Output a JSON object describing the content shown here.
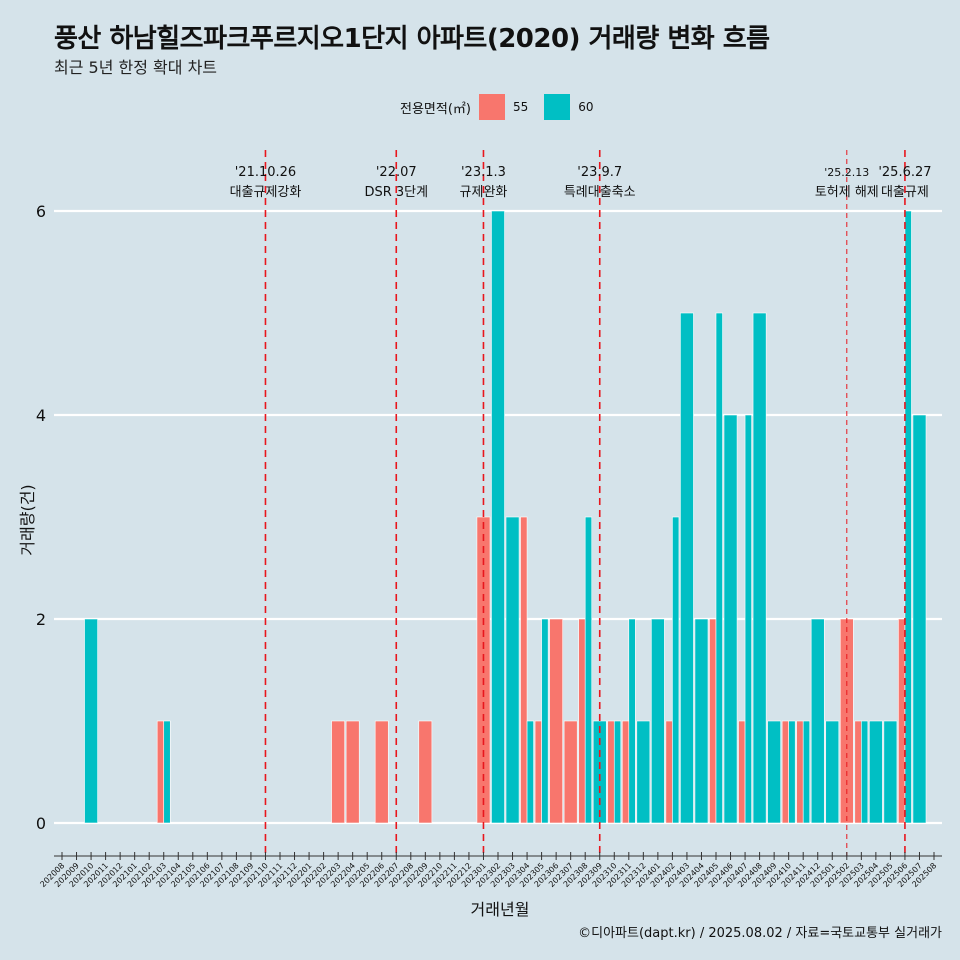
{
  "title": "풍산 하남힐즈파크푸르지오1단지 아파트(2020) 거래량 변화 흐름",
  "subtitle": "최근 5년 한정 확대 차트",
  "caption": "©디아파트(dapt.kr) / 2025.08.02 / 자료=국토교통부 실거래가",
  "legend": {
    "title": "전용면적(㎡)",
    "items": [
      {
        "label": "55",
        "color": "#f8766d"
      },
      {
        "label": "60",
        "color": "#00bfc4"
      }
    ]
  },
  "chart_data": {
    "type": "bar",
    "xlabel": "거래년월",
    "ylabel": "거래량(건)",
    "ylim": [
      0,
      6.3
    ],
    "yticks": [
      0,
      2,
      4,
      6
    ],
    "categories": [
      "202008",
      "202009",
      "202010",
      "202011",
      "202012",
      "202101",
      "202102",
      "202103",
      "202104",
      "202105",
      "202106",
      "202107",
      "202108",
      "202109",
      "202110",
      "202111",
      "202112",
      "202201",
      "202202",
      "202203",
      "202204",
      "202205",
      "202206",
      "202207",
      "202208",
      "202209",
      "202210",
      "202211",
      "202212",
      "202301",
      "202302",
      "202303",
      "202304",
      "202305",
      "202306",
      "202307",
      "202308",
      "202309",
      "202310",
      "202311",
      "202312",
      "202401",
      "202402",
      "202403",
      "202404",
      "202405",
      "202406",
      "202407",
      "202408",
      "202409",
      "202410",
      "202411",
      "202412",
      "202501",
      "202502",
      "202503",
      "202504",
      "202505",
      "202506",
      "202507",
      "202508"
    ],
    "series": [
      {
        "name": "55",
        "color": "#f8766d",
        "values": [
          0,
          0,
          0,
          0,
          0,
          0,
          0,
          1,
          0,
          0,
          0,
          0,
          0,
          0,
          0,
          0,
          0,
          0,
          0,
          1,
          1,
          0,
          1,
          0,
          0,
          1,
          0,
          0,
          0,
          3,
          0,
          0,
          3,
          1,
          2,
          1,
          2,
          0,
          1,
          1,
          0,
          0,
          1,
          0,
          0,
          2,
          0,
          1,
          0,
          0,
          1,
          1,
          0,
          0,
          2,
          1,
          0,
          0,
          2,
          0,
          0
        ]
      },
      {
        "name": "60",
        "color": "#00bfc4",
        "values": [
          0,
          0,
          2,
          0,
          0,
          0,
          0,
          1,
          0,
          0,
          0,
          0,
          0,
          0,
          0,
          0,
          0,
          0,
          0,
          0,
          0,
          0,
          0,
          0,
          0,
          0,
          0,
          0,
          0,
          0,
          6,
          3,
          1,
          2,
          0,
          0,
          3,
          1,
          1,
          2,
          1,
          2,
          3,
          5,
          2,
          5,
          4,
          4,
          5,
          1,
          1,
          1,
          2,
          1,
          0,
          1,
          1,
          1,
          6,
          4,
          0
        ]
      }
    ],
    "events": [
      {
        "month": "202110",
        "date": "'21.10.26",
        "label": "대출규제강화",
        "style": "solid"
      },
      {
        "month": "202207",
        "date": "'22.07",
        "label": "DSR 3단계",
        "style": "solid"
      },
      {
        "month": "202301",
        "date": "'23.1.3",
        "label": "규제완화",
        "style": "solid"
      },
      {
        "month": "202309",
        "date": "'23.9.7",
        "label": "특례대출축소",
        "style": "solid"
      },
      {
        "month": "202502",
        "date": "'25.2.13",
        "label": "토허제 해제",
        "style": "thin"
      },
      {
        "month": "202506",
        "date": "'25.6.27",
        "label": "대출규제",
        "style": "solid"
      }
    ],
    "grid": true
  }
}
